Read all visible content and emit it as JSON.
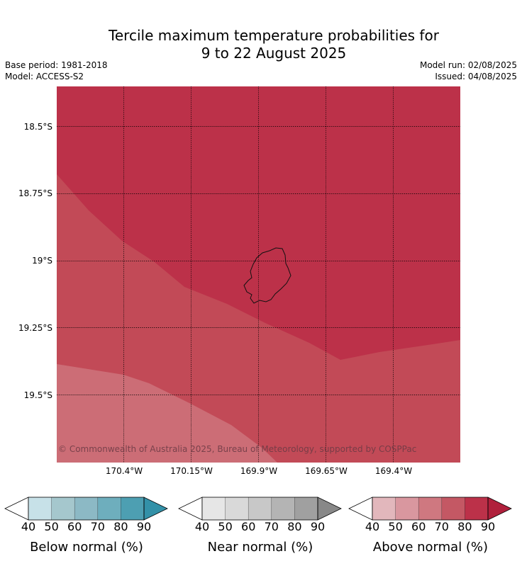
{
  "title_line1": "Tercile maximum temperature probabilities for",
  "title_line2": "9 to 22 August 2025",
  "meta": {
    "base_period": "Base period: 1981-2018",
    "model": "Model: ACCESS-S2",
    "model_run": "Model run: 02/08/2025",
    "issued": "Issued: 04/08/2025"
  },
  "map": {
    "lat_labels": [
      "18.5°S",
      "18.75°S",
      "19°S",
      "19.25°S",
      "19.5°S"
    ],
    "lon_labels": [
      "170.4°W",
      "170.15°W",
      "169.9°W",
      "169.65°W",
      "169.4°W"
    ],
    "copyright": "© Commonwealth of Australia 2025, Bureau of Meteorology, supported by COSPPac",
    "colors": {
      "above_90": "#bc3149",
      "above_80": "#c24a57",
      "above_70": "#cc6d76"
    }
  },
  "colorbars": [
    {
      "label": "Below normal (%)",
      "ticks": [
        "40",
        "50",
        "60",
        "70",
        "80",
        "90"
      ],
      "colors": [
        "#ffffff",
        "#c7e1e8",
        "#a5c7cd",
        "#8cb9c5",
        "#6eaebd",
        "#4d9fb2",
        "#3391a8"
      ]
    },
    {
      "label": "Near normal (%)",
      "ticks": [
        "40",
        "50",
        "60",
        "70",
        "80",
        "90"
      ],
      "colors": [
        "#ffffff",
        "#e6e6e6",
        "#d9d9d9",
        "#c8c8c8",
        "#b4b4b4",
        "#a0a0a0",
        "#888888"
      ]
    },
    {
      "label": "Above normal (%)",
      "ticks": [
        "40",
        "50",
        "60",
        "70",
        "80",
        "90"
      ],
      "colors": [
        "#ffffff",
        "#e2b7bc",
        "#d9979f",
        "#cf7880",
        "#c45864",
        "#bc3149",
        "#b0203c"
      ]
    }
  ]
}
